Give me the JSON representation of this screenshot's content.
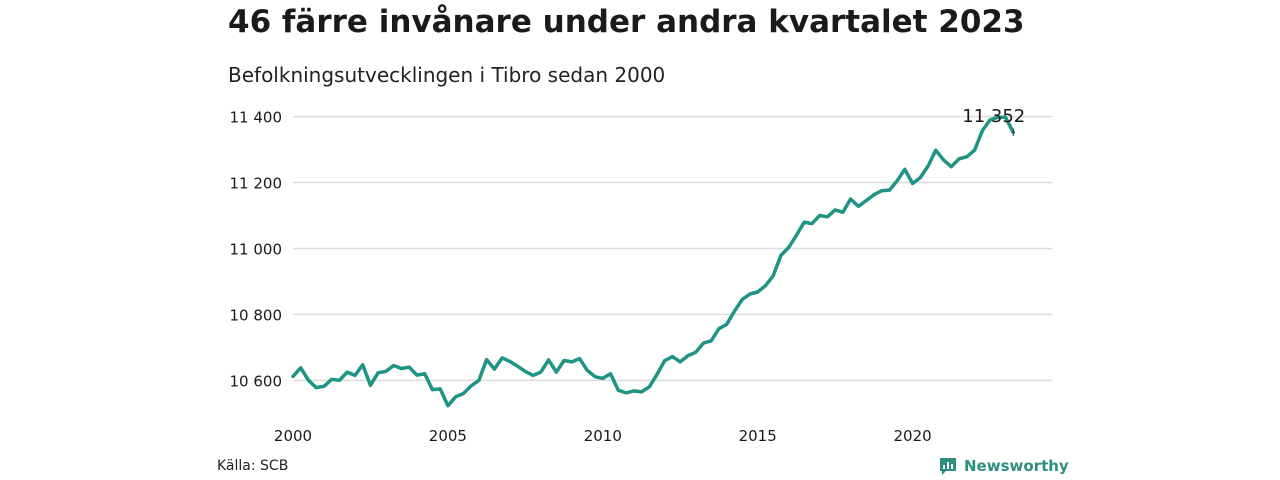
{
  "header": {
    "title": "46 färre invånare under andra kvartalet 2023",
    "subtitle": "Befolkningsutvecklingen i Tibro sedan 2000"
  },
  "footer": {
    "source": "Källa: SCB",
    "brand": "Newsworthy"
  },
  "colors": {
    "line": "#1f9384",
    "grid": "#dcdcdc",
    "text": "#1a1a1a",
    "brand": "#2f8f7f"
  },
  "chart_data": {
    "type": "line",
    "title": "46 färre invånare under andra kvartalet 2023",
    "subtitle": "Befolkningsutvecklingen i Tibro sedan 2000",
    "xlabel": "",
    "ylabel": "",
    "xlim": [
      2000,
      2024.5
    ],
    "ylim": [
      10510,
      11420
    ],
    "x_ticks": [
      2000,
      2005,
      2010,
      2015,
      2020
    ],
    "x_tick_labels": [
      "2000",
      "2005",
      "2010",
      "2015",
      "2020"
    ],
    "y_ticks": [
      10600,
      10800,
      11000,
      11200,
      11400
    ],
    "y_tick_labels": [
      "10 600",
      "10 800",
      "11 000",
      "11 200",
      "11 400"
    ],
    "grid": "horizontal",
    "legend": "none",
    "end_label": "11 352",
    "series": [
      {
        "x": [
          2000.0,
          2000.25,
          2000.5,
          2000.75,
          2001.0,
          2001.25,
          2001.5,
          2001.75,
          2002.0,
          2002.25,
          2002.5,
          2002.75,
          2003.0,
          2003.25,
          2003.5,
          2003.75,
          2004.0,
          2004.25,
          2004.5,
          2004.75,
          2005.0,
          2005.25,
          2005.5,
          2005.75,
          2006.0,
          2006.25,
          2006.5,
          2006.75,
          2007.0,
          2007.25,
          2007.5,
          2007.75,
          2008.0,
          2008.25,
          2008.5,
          2008.75,
          2009.0,
          2009.25,
          2009.5,
          2009.75,
          2010.0,
          2010.25,
          2010.5,
          2010.75,
          2011.0,
          2011.25,
          2011.5,
          2011.75,
          2012.0,
          2012.25,
          2012.5,
          2012.75,
          2013.0,
          2013.25,
          2013.5,
          2013.75,
          2014.0,
          2014.25,
          2014.5,
          2014.75,
          2015.0,
          2015.25,
          2015.5,
          2015.75,
          2016.0,
          2016.25,
          2016.5,
          2016.75,
          2017.0,
          2017.25,
          2017.5,
          2017.75,
          2018.0,
          2018.25,
          2018.5,
          2018.75,
          2019.0,
          2019.25,
          2019.5,
          2019.75,
          2020.0,
          2020.25,
          2020.5,
          2020.75,
          2021.0,
          2021.25,
          2021.5,
          2021.75,
          2022.0,
          2022.25,
          2022.5,
          2022.75,
          2023.0,
          2023.25
        ],
        "values": [
          10612,
          10638,
          10600,
          10578,
          10582,
          10603,
          10600,
          10625,
          10615,
          10647,
          10585,
          10623,
          10627,
          10645,
          10636,
          10640,
          10616,
          10620,
          10572,
          10574,
          10523,
          10550,
          10560,
          10583,
          10600,
          10663,
          10634,
          10668,
          10657,
          10643,
          10627,
          10615,
          10625,
          10662,
          10625,
          10660,
          10656,
          10666,
          10630,
          10611,
          10606,
          10620,
          10570,
          10562,
          10568,
          10565,
          10580,
          10618,
          10660,
          10672,
          10656,
          10675,
          10685,
          10713,
          10720,
          10757,
          10770,
          10810,
          10845,
          10862,
          10868,
          10887,
          10917,
          10979,
          11003,
          11040,
          11080,
          11075,
          11100,
          11096,
          11117,
          11110,
          11150,
          11128,
          11145,
          11163,
          11175,
          11177,
          11205,
          11240,
          11197,
          11215,
          11250,
          11298,
          11268,
          11248,
          11272,
          11278,
          11298,
          11357,
          11390,
          11398,
          11398,
          11352
        ]
      }
    ]
  }
}
